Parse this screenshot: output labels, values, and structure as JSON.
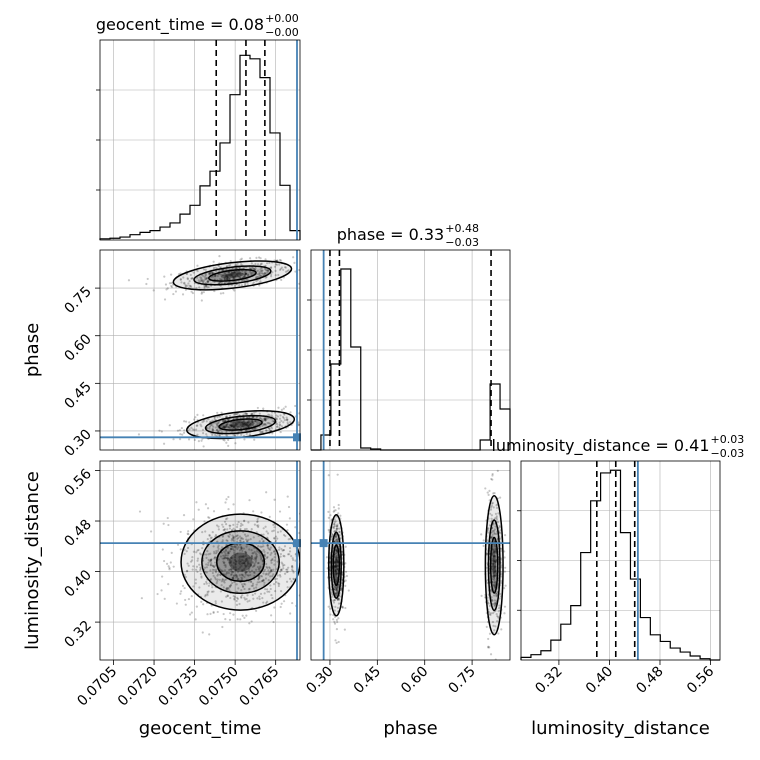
{
  "chart_data": {
    "type": "corner",
    "parameters": [
      "geocent_time",
      "phase",
      "luminosity_distance"
    ],
    "axis_labels": {
      "geocent_time": "geocent_time",
      "phase": "phase",
      "luminosity_distance": "luminosity_distance"
    },
    "titles": {
      "geocent_time": {
        "name": "geocent_time",
        "value": "0.08",
        "plus": "+0.00",
        "minus": "−0.00"
      },
      "phase": {
        "name": "phase",
        "value": "0.33",
        "plus": "+0.48",
        "minus": "−0.03"
      },
      "luminosity_distance": {
        "name": "luminosity_distance",
        "value": "0.41",
        "plus": "+0.03",
        "minus": "−0.03"
      }
    },
    "ranges": {
      "geocent_time": [
        0.07,
        0.0774
      ],
      "phase": [
        0.24,
        0.87
      ],
      "luminosity_distance": [
        0.26,
        0.575
      ]
    },
    "ticks": {
      "geocent_time": [
        "0.0705",
        "0.0720",
        "0.0735",
        "0.0750",
        "0.0765"
      ],
      "phase": [
        "0.30",
        "0.45",
        "0.60",
        "0.75"
      ],
      "luminosity_distance": [
        "0.32",
        "0.40",
        "0.48",
        "0.56"
      ]
    },
    "truths": {
      "geocent_time": 0.0774,
      "phase": 0.28,
      "luminosity_distance": 0.445
    },
    "quantiles": {
      "geocent_time": [
        0.0743,
        0.0754,
        0.0761
      ],
      "phase": [
        0.3,
        0.33,
        0.81
      ],
      "luminosity_distance": [
        0.38,
        0.41,
        0.44
      ]
    },
    "histograms": {
      "geocent_time": {
        "edges_start": 0.07,
        "edges_end": 0.0774,
        "counts": [
          0.2,
          0.3,
          0.5,
          0.9,
          1.3,
          1.6,
          2.2,
          2.9,
          4.4,
          5.9,
          9.2,
          11.7,
          16.5,
          24.7,
          31.4,
          30.8,
          27.6,
          18.2,
          9.3,
          1.6
        ]
      },
      "phase": {
        "edges_start": 0.24,
        "edges_end": 0.87,
        "counts": [
          0.0,
          1.5,
          8.6,
          18.1,
          10.3,
          0.2,
          0.1,
          0.0,
          0.0,
          0.0,
          0.0,
          0.0,
          0.0,
          0.0,
          0.0,
          0.0,
          0.0,
          1.0,
          6.6,
          4.1
        ]
      },
      "luminosity_distance": {
        "edges_start": 0.26,
        "edges_end": 0.575,
        "counts": [
          0.2,
          0.4,
          0.7,
          1.5,
          2.7,
          4.1,
          8.1,
          12.0,
          14.1,
          14.3,
          9.6,
          6.1,
          3.2,
          1.9,
          1.4,
          0.9,
          0.6,
          0.3,
          0.1,
          0.0
        ]
      },
      "ylim": {
        "geocent_time": [
          0,
          34
        ],
        "phase": [
          0,
          20
        ],
        "luminosity_distance": [
          0,
          15
        ]
      }
    },
    "scatter_clusters": {
      "geocent_time_phase": [
        {
          "cx": 0.0749,
          "cy": 0.79,
          "sx": 0.0011,
          "sy": 0.02,
          "n": 520,
          "tilt": 0.55
        },
        {
          "cx": 0.0752,
          "cy": 0.32,
          "sx": 0.001,
          "sy": 0.02,
          "n": 560,
          "tilt": 0.45
        }
      ],
      "geocent_time_luminosity_distance": [
        {
          "cx": 0.0752,
          "cy": 0.415,
          "sx": 0.0011,
          "sy": 0.038,
          "n": 950,
          "tilt": 0.0
        }
      ],
      "phase_luminosity_distance": [
        {
          "cx": 0.32,
          "cy": 0.41,
          "sx": 0.012,
          "sy": 0.04,
          "n": 520,
          "tilt": 0.0
        },
        {
          "cx": 0.82,
          "cy": 0.41,
          "sx": 0.014,
          "sy": 0.055,
          "n": 420,
          "tilt": 0.0
        }
      ]
    },
    "grid": true,
    "colors": {
      "truth": "#4682b4",
      "hist": "#000000",
      "points": "#000000",
      "grid": "#b0b0b0"
    }
  }
}
